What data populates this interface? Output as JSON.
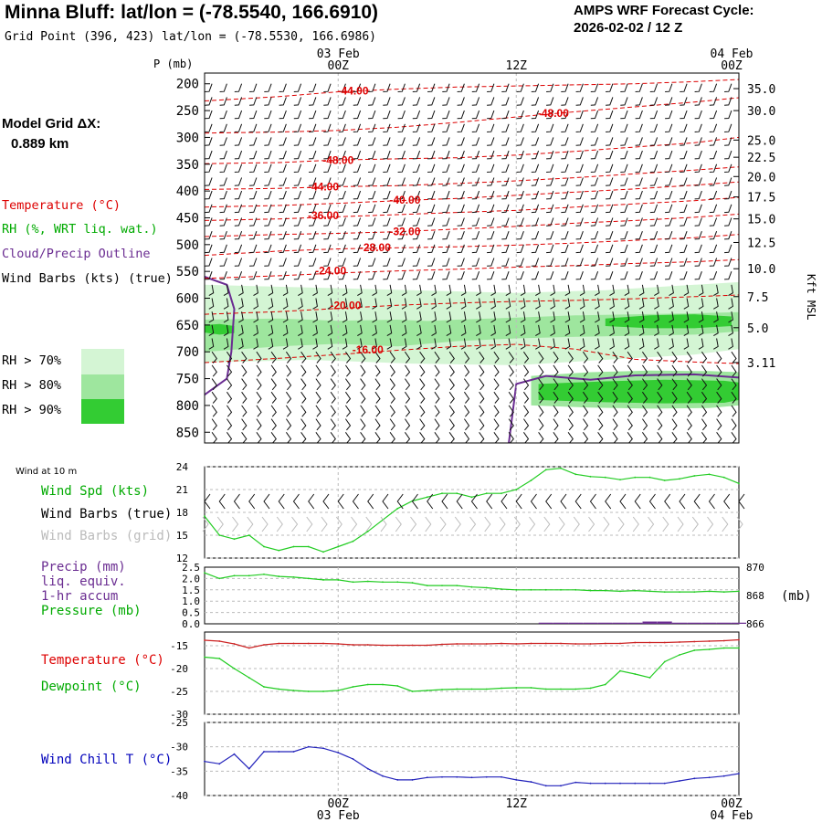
{
  "header": {
    "title": "Minna Bluff:  lat/lon = (-78.5540, 166.6910)",
    "grid_point": "Grid Point (396, 423) lat/lon = (-78.5530, 166.6986)",
    "cycle_line1": "AMPS WRF Forecast Cycle:",
    "cycle_line2": "2026-02-02 / 12  Z",
    "model_dx_label": "Model Grid ΔX:",
    "model_dx_value": "0.889 km"
  },
  "colors": {
    "temperature": "#dd0000",
    "rh": "#00aa00",
    "cloud": "#6a2c91",
    "wind_chill": "#0000bb",
    "rh70": "#d4f5d4",
    "rh80": "#9ee69e",
    "rh90": "#33cc33"
  },
  "legend": {
    "temperature": "Temperature (°C)",
    "rh": "RH (%, WRT liq. wat.)",
    "cloud": "Cloud/Precip Outline",
    "wind": "Wind Barbs (kts) (true)",
    "rh70": "RH > 70%",
    "rh80": "RH > 80%",
    "rh90": "RH > 90%"
  },
  "chart_data": [
    {
      "type": "heatmap",
      "name": "cross-section",
      "ylabel": "P (mb)",
      "right_axis_label": "Kft MSL",
      "x_ticks": [
        "00Z",
        "12Z",
        "00Z"
      ],
      "x_dates": [
        "03 Feb",
        "",
        "04 Feb"
      ],
      "x_range_hours": [
        -9,
        27
      ],
      "pressure_levels": [
        200,
        250,
        300,
        350,
        400,
        450,
        500,
        550,
        600,
        650,
        700,
        750,
        800,
        850
      ],
      "pressure_range": [
        180,
        870
      ],
      "height_kft": [
        {
          "p": 209,
          "kft": "35.0"
        },
        {
          "p": 250,
          "kft": "30.0"
        },
        {
          "p": 305,
          "kft": "25.0"
        },
        {
          "p": 337,
          "kft": "22.5"
        },
        {
          "p": 373,
          "kft": "20.0"
        },
        {
          "p": 411,
          "kft": "17.5"
        },
        {
          "p": 452,
          "kft": "15.0"
        },
        {
          "p": 496,
          "kft": "12.5"
        },
        {
          "p": 545,
          "kft": "10.0"
        },
        {
          "p": 597,
          "kft": "7.5"
        },
        {
          "p": 655,
          "kft": "5.0"
        },
        {
          "p": 720,
          "kft": "3.11"
        }
      ],
      "temperature_contours": [
        {
          "label": "-44.00",
          "h": [
            -9,
            -4,
            0,
            4,
            8,
            12,
            16,
            20,
            24,
            27
          ],
          "p": [
            232,
            224,
            215,
            210,
            206,
            204,
            202,
            200,
            196,
            192
          ],
          "lx": 1,
          "lp": 213
        },
        {
          "label": "-48.00",
          "h": [
            -9,
            -4,
            0,
            4,
            8,
            12,
            16,
            20,
            24,
            27
          ],
          "p": [
            292,
            290,
            287,
            281,
            272,
            262,
            252,
            243,
            234,
            226
          ],
          "lx": 14.5,
          "lp": 255
        },
        {
          "label": "-48.00",
          "h": [
            -9,
            -4,
            0,
            4,
            8,
            12,
            16,
            20,
            24,
            27
          ],
          "p": [
            349,
            347,
            342,
            340,
            338,
            333,
            326,
            318,
            310,
            300
          ],
          "lx": 0,
          "lp": 343
        },
        {
          "label": "-44.00",
          "h": [
            -9,
            -4,
            0,
            4,
            8,
            12,
            16,
            20,
            24,
            27
          ],
          "p": [
            397,
            395,
            392,
            390,
            386,
            381,
            375,
            368,
            361,
            355
          ],
          "lx": -1,
          "lp": 392
        },
        {
          "label": "-40.00",
          "h": [
            -9,
            -4,
            0,
            4,
            8,
            12,
            16,
            20,
            24,
            27
          ],
          "p": [
            430,
            427,
            423,
            418,
            414,
            408,
            402,
            396,
            389,
            383
          ],
          "lx": 4.5,
          "lp": 417
        },
        {
          "label": "-36.00",
          "h": [
            -9,
            -4,
            0,
            4,
            8,
            12,
            16,
            20,
            24,
            27
          ],
          "p": [
            455,
            452,
            448,
            444,
            440,
            436,
            430,
            424,
            418,
            412
          ],
          "lx": -1,
          "lp": 446
        },
        {
          "label": "-32.00",
          "h": [
            -9,
            -4,
            0,
            4,
            8,
            12,
            16,
            20,
            24,
            27
          ],
          "p": [
            485,
            481,
            479,
            476,
            471,
            466,
            460,
            455,
            449,
            443
          ],
          "lx": 4.5,
          "lp": 476
        },
        {
          "label": "-28.00",
          "h": [
            -9,
            -4,
            0,
            4,
            8,
            12,
            16,
            20,
            24,
            27
          ],
          "p": [
            520,
            512,
            508,
            506,
            504,
            501,
            497,
            492,
            487,
            481
          ],
          "lx": 2.5,
          "lp": 505
        },
        {
          "label": "-24.00",
          "h": [
            -9,
            -4,
            0,
            4,
            8,
            12,
            16,
            20,
            24,
            27
          ],
          "p": [
            563,
            558,
            553,
            549,
            546,
            542,
            539,
            535,
            532,
            528
          ],
          "lx": -0.5,
          "lp": 549
        },
        {
          "label": "-20.00",
          "h": [
            -9,
            -4,
            0,
            4,
            8,
            12,
            16,
            20,
            24,
            27
          ],
          "p": [
            630,
            625,
            619,
            613,
            609,
            606,
            604,
            601,
            597,
            594
          ],
          "lx": 0.5,
          "lp": 614
        },
        {
          "label": "-16.00",
          "h": [
            -9,
            -4,
            0,
            4,
            8,
            12,
            16,
            20,
            24,
            27
          ],
          "p": [
            720,
            712,
            705,
            697,
            690,
            686,
            695,
            714,
            719,
            722
          ],
          "lx": 2,
          "lp": 696
        }
      ],
      "rh_regions": [
        {
          "level": "rh70",
          "h": [
            -9,
            -2,
            5,
            12,
            18,
            24,
            27,
            27,
            24,
            18,
            12,
            5,
            -2,
            -9
          ],
          "p": [
            575,
            580,
            585,
            590,
            585,
            575,
            570,
            695,
            705,
            715,
            725,
            722,
            715,
            720
          ]
        },
        {
          "level": "rh80",
          "h": [
            -9,
            -4,
            0,
            4,
            8,
            8,
            4,
            0,
            -4,
            -9
          ],
          "p": [
            640,
            638,
            642,
            640,
            645,
            680,
            690,
            685,
            690,
            700
          ]
        },
        {
          "level": "rh80",
          "h": [
            4,
            8,
            12,
            16,
            20,
            24,
            27,
            27,
            24,
            20,
            16,
            12,
            8,
            4
          ],
          "p": [
            645,
            640,
            636,
            632,
            630,
            628,
            626,
            662,
            668,
            670,
            672,
            675,
            680,
            680
          ]
        },
        {
          "level": "rh80",
          "h": [
            13,
            17,
            21,
            25,
            27,
            27,
            25,
            21,
            17,
            13
          ],
          "p": [
            745,
            738,
            735,
            736,
            738,
            800,
            805,
            806,
            804,
            800
          ]
        },
        {
          "level": "rh90",
          "h": [
            13.5,
            18,
            22,
            26,
            27,
            27,
            26,
            22,
            18,
            13.5
          ],
          "p": [
            760,
            755,
            752,
            754,
            757,
            790,
            795,
            796,
            794,
            790
          ]
        },
        {
          "level": "rh90",
          "h": [
            18,
            21,
            24,
            26.5,
            26.5,
            24,
            21,
            18
          ],
          "p": [
            638,
            632,
            630,
            634,
            652,
            656,
            656,
            652
          ]
        },
        {
          "level": "rh90",
          "h": [
            -9,
            -8,
            -7,
            -7,
            -8,
            -9
          ],
          "p": [
            650,
            648,
            652,
            665,
            668,
            664
          ]
        }
      ],
      "cloud_outlines": [
        {
          "h": [
            -9,
            -7.5,
            -7,
            -7.2,
            -7.5,
            -9
          ],
          "p": [
            560,
            575,
            620,
            700,
            750,
            780
          ]
        },
        {
          "h": [
            11.5,
            12,
            14,
            17,
            20,
            24,
            27
          ],
          "p": [
            870,
            760,
            745,
            752,
            744,
            742,
            748
          ]
        }
      ]
    },
    {
      "type": "line",
      "name": "wind-speed",
      "title": "Wind at 10 m",
      "label": "Wind Spd (kts)",
      "barb_label_true": "Wind Barbs (true)",
      "barb_label_grid": "Wind Barbs (grid)",
      "ylim": [
        12,
        24
      ],
      "yticks": [
        12,
        15,
        18,
        21,
        24
      ],
      "x": [
        -9,
        -8,
        -7,
        -6,
        -5,
        -4,
        -3,
        -2,
        -1,
        0,
        1,
        2,
        3,
        4,
        5,
        6,
        7,
        8,
        9,
        10,
        11,
        12,
        13,
        14,
        15,
        16,
        17,
        18,
        19,
        20,
        21,
        22,
        23,
        24,
        25,
        26,
        27
      ],
      "values": [
        17.5,
        15,
        14.5,
        15,
        13.5,
        13,
        13.5,
        13.5,
        12.8,
        13.5,
        14.2,
        15.5,
        17,
        18.5,
        19.5,
        20,
        20.5,
        20.5,
        20,
        20.5,
        20.5,
        21,
        22.2,
        23.6,
        23.8,
        23,
        22.7,
        22.6,
        22.3,
        22.6,
        22.6,
        22.2,
        22.4,
        22.8,
        23,
        22.6,
        21.8
      ]
    },
    {
      "type": "line",
      "name": "precip-pressure",
      "labels": [
        "Precip (mm)",
        "liq. equiv.",
        "1-hr accum",
        "Pressure (mb)"
      ],
      "precip_ylim": [
        0,
        2.5
      ],
      "precip_ticks": [
        "0.0",
        "0.5",
        "1.0",
        "1.5",
        "2.0",
        "2.5"
      ],
      "pressure_ylim": [
        866,
        870
      ],
      "pressure_ticks": [
        866,
        868,
        870
      ],
      "pressure_unit": "(mb)",
      "x": [
        -9,
        -8,
        -7,
        -6,
        -5,
        -4,
        -3,
        -2,
        -1,
        0,
        1,
        2,
        3,
        4,
        5,
        6,
        7,
        8,
        9,
        10,
        11,
        12,
        13,
        14,
        15,
        16,
        17,
        18,
        19,
        20,
        21,
        22,
        23,
        24,
        25,
        26,
        27
      ],
      "pressure": [
        869.6,
        869.2,
        869.4,
        869.4,
        869.5,
        869.35,
        869.3,
        869.2,
        869.1,
        869.1,
        868.95,
        869.0,
        868.95,
        868.95,
        868.9,
        868.7,
        868.7,
        868.7,
        868.6,
        868.55,
        868.45,
        868.4,
        868.4,
        868.4,
        868.4,
        868.4,
        868.35,
        868.35,
        868.3,
        868.35,
        868.3,
        868.25,
        868.25,
        868.25,
        868.3,
        868.25,
        868.3
      ],
      "precip_h": [
        14,
        15,
        16,
        17,
        18,
        19,
        20,
        21,
        22,
        23,
        24,
        25,
        26,
        27
      ],
      "precip": [
        0.05,
        0.05,
        0.05,
        0.05,
        0.05,
        0.05,
        0.05,
        0.1,
        0.1,
        0.05,
        0.05,
        0.05,
        0.05,
        0.05
      ]
    },
    {
      "type": "line",
      "name": "temperature-dewpoint",
      "labels": [
        "Temperature (°C)",
        "Dewpoint (°C)"
      ],
      "ylim": [
        -30,
        -12
      ],
      "yticks": [
        -30,
        -25,
        -20,
        -15
      ],
      "x": [
        -9,
        -8,
        -7,
        -6,
        -5,
        -4,
        -3,
        -2,
        -1,
        0,
        1,
        2,
        3,
        4,
        5,
        6,
        7,
        8,
        9,
        10,
        11,
        12,
        13,
        14,
        15,
        16,
        17,
        18,
        19,
        20,
        21,
        22,
        23,
        24,
        25,
        26,
        27
      ],
      "temperature": [
        -13.8,
        -14,
        -14.6,
        -15.5,
        -14.8,
        -14.5,
        -14.5,
        -14.5,
        -14.5,
        -14.6,
        -14.8,
        -14.8,
        -14.9,
        -14.9,
        -14.9,
        -14.9,
        -14.7,
        -14.6,
        -14.6,
        -14.6,
        -14.5,
        -14.6,
        -14.5,
        -14.5,
        -14.5,
        -14.6,
        -14.6,
        -14.5,
        -14.5,
        -14.3,
        -14.3,
        -14.3,
        -14.2,
        -14.1,
        -14,
        -13.9,
        -13.7
      ],
      "dewpoint": [
        -17.5,
        -17.8,
        -20,
        -22,
        -24,
        -24.5,
        -24.8,
        -25,
        -25,
        -24.8,
        -24,
        -23.5,
        -23.5,
        -23.8,
        -25,
        -24.8,
        -24.6,
        -24.5,
        -24.5,
        -24.5,
        -24.3,
        -24.2,
        -24.2,
        -24.5,
        -24.5,
        -24.5,
        -24.3,
        -23.5,
        -20.5,
        -21.2,
        -22,
        -18.5,
        -17,
        -16,
        -15.8,
        -15.5,
        -15.5
      ]
    },
    {
      "type": "line",
      "name": "wind-chill",
      "label": "Wind Chill T (°C)",
      "ylim": [
        -40,
        -25
      ],
      "yticks": [
        -40,
        -35,
        -30,
        -25
      ],
      "x": [
        -9,
        -8,
        -7,
        -6,
        -5,
        -4,
        -3,
        -2,
        -1,
        0,
        1,
        2,
        3,
        4,
        5,
        6,
        7,
        8,
        9,
        10,
        11,
        12,
        13,
        14,
        15,
        16,
        17,
        18,
        19,
        20,
        21,
        22,
        23,
        24,
        25,
        26,
        27
      ],
      "values": [
        -33,
        -33.5,
        -31.5,
        -34.5,
        -31,
        -31,
        -31,
        -30,
        -30.3,
        -31.2,
        -32.5,
        -34.5,
        -36,
        -36.8,
        -36.8,
        -36.3,
        -36.2,
        -36.2,
        -36.3,
        -36.2,
        -36.2,
        -36.8,
        -37.2,
        -38,
        -38,
        -37.3,
        -37.5,
        -37.5,
        -37.5,
        -37.5,
        -37.5,
        -37.5,
        -37,
        -36.5,
        -36.3,
        -36,
        -35.5
      ]
    }
  ]
}
